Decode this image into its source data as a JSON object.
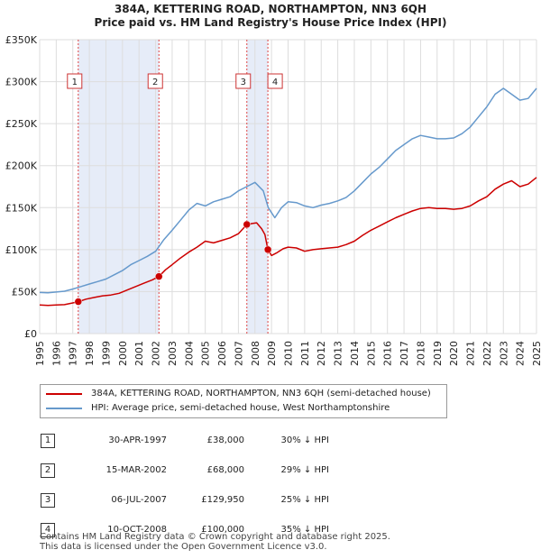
{
  "title_line1": "384A, KETTERING ROAD, NORTHAMPTON, NN3 6QH",
  "title_line2": "Price paid vs. HM Land Registry's House Price Index (HPI)",
  "chart_data": {
    "type": "line",
    "xlim": [
      1995,
      2025
    ],
    "ylim": [
      0,
      350000
    ],
    "y_ticks": [
      0,
      50000,
      100000,
      150000,
      200000,
      250000,
      300000,
      350000
    ],
    "y_tick_labels": [
      "£0",
      "£50K",
      "£100K",
      "£150K",
      "£200K",
      "£250K",
      "£300K",
      "£350K"
    ],
    "x_ticks": [
      1995,
      1996,
      1997,
      1998,
      1999,
      2000,
      2001,
      2002,
      2003,
      2004,
      2005,
      2006,
      2007,
      2008,
      2009,
      2010,
      2011,
      2012,
      2013,
      2014,
      2015,
      2016,
      2017,
      2018,
      2019,
      2020,
      2021,
      2022,
      2023,
      2024,
      2025
    ],
    "x_tick_labels": [
      "1995",
      "1996",
      "1997",
      "1998",
      "1999",
      "2000",
      "2001",
      "2002",
      "2003",
      "2004",
      "2005",
      "2006",
      "2007",
      "2008",
      "2009",
      "2010",
      "2011",
      "2012",
      "2013",
      "2014",
      "2015",
      "2016",
      "2017",
      "2018",
      "2019",
      "2020",
      "2021",
      "2022",
      "2023",
      "2024",
      "2025"
    ],
    "grid": true,
    "shaded_ranges": [
      [
        1997.33,
        2002.2
      ],
      [
        2007.51,
        2008.78
      ]
    ],
    "series": [
      {
        "name": "384A, KETTERING ROAD, NORTHAMPTON, NN3 6QH (semi-detached house)",
        "color": "#cc0000",
        "x": [
          1995.0,
          1995.5,
          1996.0,
          1996.5,
          1997.0,
          1997.33,
          1997.8,
          1998.3,
          1998.8,
          1999.3,
          1999.8,
          2000.3,
          2000.8,
          2001.3,
          2001.8,
          2002.2,
          2002.6,
          2003.0,
          2003.5,
          2004.0,
          2004.5,
          2005.0,
          2005.5,
          2006.0,
          2006.5,
          2007.0,
          2007.51,
          2007.8,
          2008.1,
          2008.4,
          2008.6,
          2008.78,
          2009.0,
          2009.3,
          2009.7,
          2010.0,
          2010.5,
          2011.0,
          2011.5,
          2012.0,
          2012.5,
          2013.0,
          2013.5,
          2014.0,
          2014.5,
          2015.0,
          2015.5,
          2016.0,
          2016.5,
          2017.0,
          2017.5,
          2018.0,
          2018.5,
          2019.0,
          2019.5,
          2020.0,
          2020.5,
          2021.0,
          2021.5,
          2022.0,
          2022.5,
          2023.0,
          2023.5,
          2024.0,
          2024.5,
          2025.0
        ],
        "y": [
          34000,
          33500,
          34000,
          34500,
          36500,
          38000,
          41000,
          43000,
          45000,
          46000,
          48000,
          52000,
          56000,
          60000,
          64000,
          68000,
          76000,
          82000,
          90000,
          97000,
          103000,
          110000,
          108000,
          111000,
          114000,
          119000,
          129950,
          131000,
          132000,
          125000,
          118000,
          100000,
          93000,
          96000,
          101000,
          103000,
          102000,
          98000,
          100000,
          101000,
          102000,
          103000,
          106000,
          110000,
          117000,
          123000,
          128000,
          133000,
          138000,
          142000,
          146000,
          149000,
          150000,
          149000,
          149000,
          148000,
          149000,
          152000,
          158000,
          163000,
          172000,
          178000,
          182000,
          175000,
          178000,
          186000
        ]
      },
      {
        "name": "HPI: Average price, semi-detached house, West Northamptonshire",
        "color": "#6699cc",
        "x": [
          1995.0,
          1995.5,
          1996.0,
          1996.5,
          1997.0,
          1997.5,
          1998.0,
          1998.5,
          1999.0,
          1999.5,
          2000.0,
          2000.5,
          2001.0,
          2001.5,
          2002.0,
          2002.5,
          2003.0,
          2003.5,
          2004.0,
          2004.5,
          2005.0,
          2005.5,
          2006.0,
          2006.5,
          2007.0,
          2007.5,
          2008.0,
          2008.5,
          2008.8,
          2009.2,
          2009.6,
          2010.0,
          2010.5,
          2011.0,
          2011.5,
          2012.0,
          2012.5,
          2013.0,
          2013.5,
          2014.0,
          2014.5,
          2015.0,
          2015.5,
          2016.0,
          2016.5,
          2017.0,
          2017.5,
          2018.0,
          2018.5,
          2019.0,
          2019.5,
          2020.0,
          2020.5,
          2021.0,
          2021.5,
          2022.0,
          2022.5,
          2023.0,
          2023.5,
          2024.0,
          2024.5,
          2025.0
        ],
        "y": [
          49000,
          48500,
          49500,
          50500,
          53000,
          56000,
          59000,
          62000,
          65000,
          70000,
          75000,
          82000,
          87000,
          92000,
          98000,
          112000,
          123000,
          135000,
          147000,
          155000,
          152000,
          157000,
          160000,
          163000,
          170000,
          175000,
          180000,
          170000,
          150000,
          138000,
          150000,
          157000,
          156000,
          152000,
          150000,
          153000,
          155000,
          158000,
          162000,
          170000,
          180000,
          190000,
          198000,
          208000,
          218000,
          225000,
          232000,
          236000,
          234000,
          232000,
          232000,
          233000,
          238000,
          246000,
          258000,
          270000,
          285000,
          292000,
          285000,
          278000,
          280000,
          292000
        ]
      }
    ],
    "sales": [
      {
        "label": "1",
        "x": 1997.33,
        "y": 38000
      },
      {
        "label": "2",
        "x": 2002.2,
        "y": 68000
      },
      {
        "label": "3",
        "x": 2007.51,
        "y": 129950
      },
      {
        "label": "4",
        "x": 2008.78,
        "y": 100000
      }
    ]
  },
  "legend": {
    "series1": "384A, KETTERING ROAD, NORTHAMPTON, NN3 6QH (semi-detached house)",
    "series2": "HPI: Average price, semi-detached house, West Northamptonshire"
  },
  "sales_table": [
    {
      "num": "1",
      "date": "30-APR-1997",
      "price": "£38,000",
      "hpi": "30% ↓ HPI"
    },
    {
      "num": "2",
      "date": "15-MAR-2002",
      "price": "£68,000",
      "hpi": "29% ↓ HPI"
    },
    {
      "num": "3",
      "date": "06-JUL-2007",
      "price": "£129,950",
      "hpi": "25% ↓ HPI"
    },
    {
      "num": "4",
      "date": "10-OCT-2008",
      "price": "£100,000",
      "hpi": "35% ↓ HPI"
    }
  ],
  "footer_line1": "Contains HM Land Registry data © Crown copyright and database right 2025.",
  "footer_line2": "This data is licensed under the Open Government Licence v3.0."
}
